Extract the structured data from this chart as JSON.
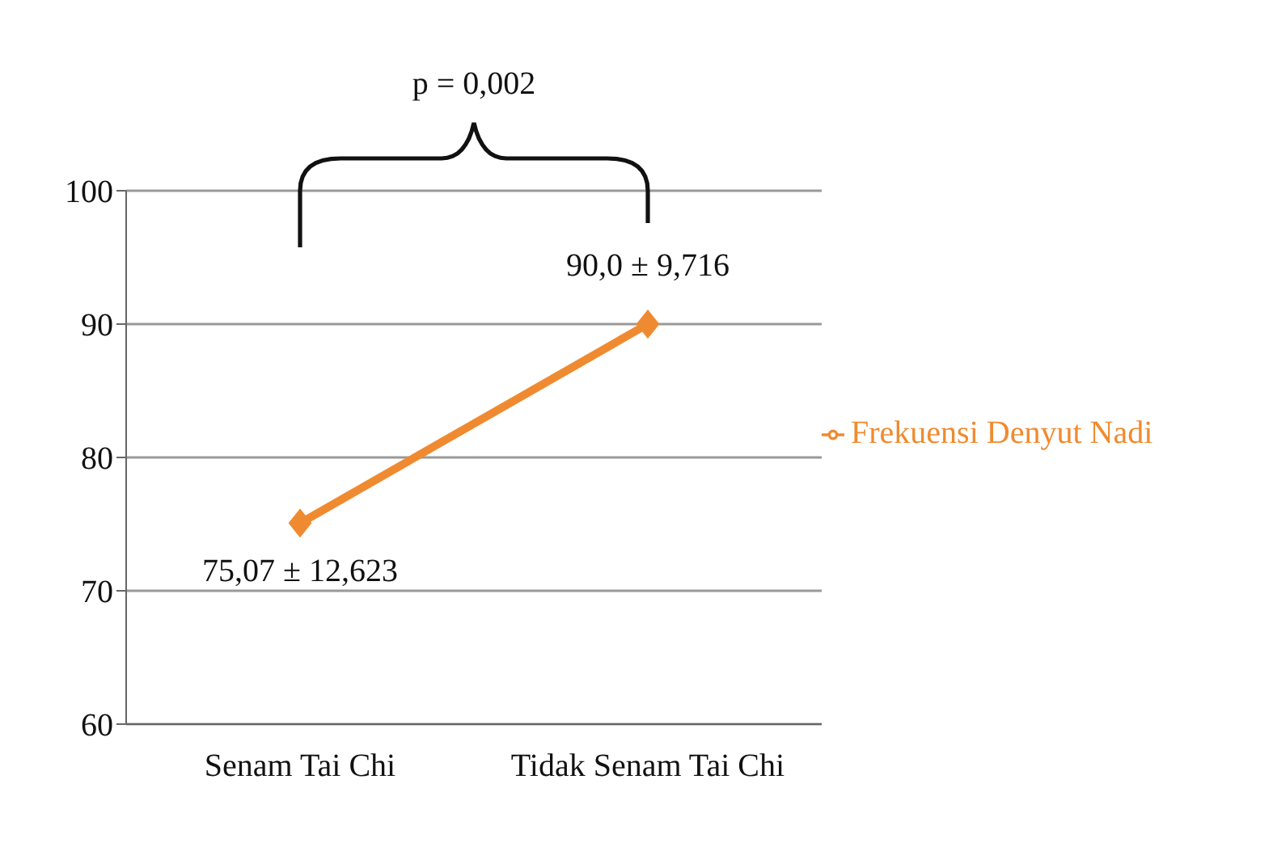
{
  "chart_data": {
    "type": "line",
    "categories": [
      "Senam Tai Chi",
      "Tidak Senam Tai Chi"
    ],
    "series": [
      {
        "name": "Frekuensi Denyut Nadi",
        "color": "#f08a30",
        "values": [
          75.07,
          90.0
        ],
        "value_labels": [
          "75,07 ± 12,623",
          "90,0 ± 9,716"
        ]
      }
    ],
    "ylim": [
      60,
      100
    ],
    "yticks": [
      60,
      70,
      80,
      90,
      100
    ],
    "grid": "y",
    "legend": "right",
    "marker": "diamond",
    "line_style": "solid",
    "annotations": [
      "p = 0,002"
    ]
  }
}
